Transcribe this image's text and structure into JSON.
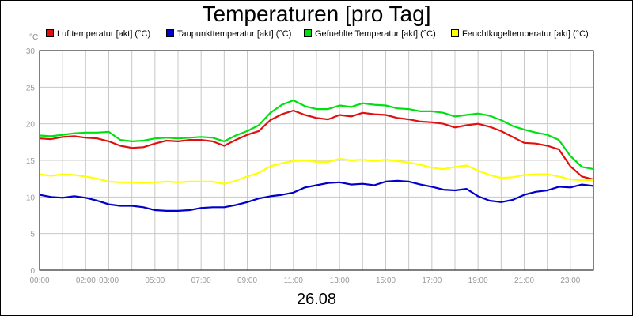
{
  "chart_data": {
    "type": "line",
    "title": "Temperaturen [pro Tag]",
    "y_unit": "°C",
    "date": "26.08",
    "ylim": [
      0,
      30
    ],
    "xlim": [
      0,
      24
    ],
    "y_ticks": [
      0,
      5,
      10,
      15,
      20,
      25,
      30
    ],
    "x_ticks": [
      {
        "label": "00:00",
        "x": 0
      },
      {
        "label": "02:00",
        "x": 2
      },
      {
        "label": "03:00",
        "x": 3
      },
      {
        "label": "05:00",
        "x": 5
      },
      {
        "label": "07:00",
        "x": 7
      },
      {
        "label": "09:00",
        "x": 9
      },
      {
        "label": "11:00",
        "x": 11
      },
      {
        "label": "13:00",
        "x": 13
      },
      {
        "label": "15:00",
        "x": 15
      },
      {
        "label": "17:00",
        "x": 17
      },
      {
        "label": "19:00",
        "x": 19
      },
      {
        "label": "21:00",
        "x": 21
      },
      {
        "label": "23:00",
        "x": 23
      }
    ],
    "x": [
      0,
      0.5,
      1,
      1.5,
      2,
      2.5,
      3,
      3.5,
      4,
      4.5,
      5,
      5.5,
      6,
      6.5,
      7,
      7.5,
      8,
      8.5,
      9,
      9.5,
      10,
      10.5,
      11,
      11.5,
      12,
      12.5,
      13,
      13.5,
      14,
      14.5,
      15,
      15.5,
      16,
      16.5,
      17,
      17.5,
      18,
      18.5,
      19,
      19.5,
      20,
      20.5,
      21,
      21.5,
      22,
      22.5,
      23,
      23.5,
      24
    ],
    "series": [
      {
        "name": "Lufttemperatur [akt] (°C)",
        "color": "#e01010",
        "values": [
          18.0,
          17.9,
          18.2,
          18.3,
          18.1,
          18.0,
          17.6,
          17.0,
          16.7,
          16.8,
          17.3,
          17.7,
          17.6,
          17.8,
          17.8,
          17.6,
          17.0,
          17.8,
          18.5,
          19.0,
          20.5,
          21.3,
          21.8,
          21.2,
          20.8,
          20.6,
          21.2,
          21.0,
          21.5,
          21.3,
          21.2,
          20.8,
          20.6,
          20.3,
          20.2,
          20.0,
          19.5,
          19.8,
          20.0,
          19.6,
          19.0,
          18.2,
          17.4,
          17.3,
          17.0,
          16.5,
          14.2,
          12.8,
          12.4
        ]
      },
      {
        "name": "Taupunkttemperatur [akt] (°C)",
        "color": "#0000c8",
        "values": [
          10.3,
          10.0,
          9.9,
          10.1,
          9.9,
          9.5,
          9.0,
          8.8,
          8.8,
          8.6,
          8.2,
          8.1,
          8.1,
          8.2,
          8.5,
          8.6,
          8.6,
          8.9,
          9.3,
          9.8,
          10.1,
          10.3,
          10.6,
          11.3,
          11.6,
          11.9,
          12.0,
          11.7,
          11.8,
          11.6,
          12.1,
          12.2,
          12.1,
          11.7,
          11.4,
          11.0,
          10.9,
          11.1,
          10.1,
          9.5,
          9.3,
          9.6,
          10.3,
          10.7,
          10.9,
          11.4,
          11.3,
          11.7,
          11.5
        ]
      },
      {
        "name": "Gefuehlte Temperatur [akt] (°C)",
        "color": "#00e010",
        "values": [
          18.4,
          18.3,
          18.5,
          18.7,
          18.8,
          18.8,
          18.9,
          17.8,
          17.6,
          17.7,
          18.0,
          18.1,
          18.0,
          18.1,
          18.2,
          18.1,
          17.6,
          18.4,
          19.0,
          19.8,
          21.5,
          22.6,
          23.2,
          22.4,
          22.0,
          22.0,
          22.5,
          22.3,
          22.8,
          22.6,
          22.5,
          22.1,
          22.0,
          21.7,
          21.7,
          21.5,
          21.0,
          21.2,
          21.4,
          21.1,
          20.5,
          19.7,
          19.2,
          18.8,
          18.5,
          17.8,
          15.6,
          14.1,
          13.8
        ]
      },
      {
        "name": "Feuchtkugeltemperatur [akt] (°C)",
        "color": "#ffff00",
        "values": [
          13.1,
          12.9,
          13.1,
          13.0,
          12.8,
          12.5,
          12.1,
          12.0,
          12.0,
          11.9,
          12.0,
          12.1,
          12.0,
          12.1,
          12.1,
          12.1,
          11.8,
          12.2,
          12.8,
          13.3,
          14.2,
          14.6,
          14.9,
          15.0,
          14.8,
          14.8,
          15.2,
          15.0,
          15.1,
          14.9,
          15.1,
          14.9,
          14.7,
          14.4,
          14.0,
          13.8,
          14.1,
          14.3,
          13.6,
          13.0,
          12.6,
          12.7,
          13.0,
          13.1,
          13.1,
          12.8,
          12.4,
          12.3,
          12.3
        ]
      }
    ]
  }
}
